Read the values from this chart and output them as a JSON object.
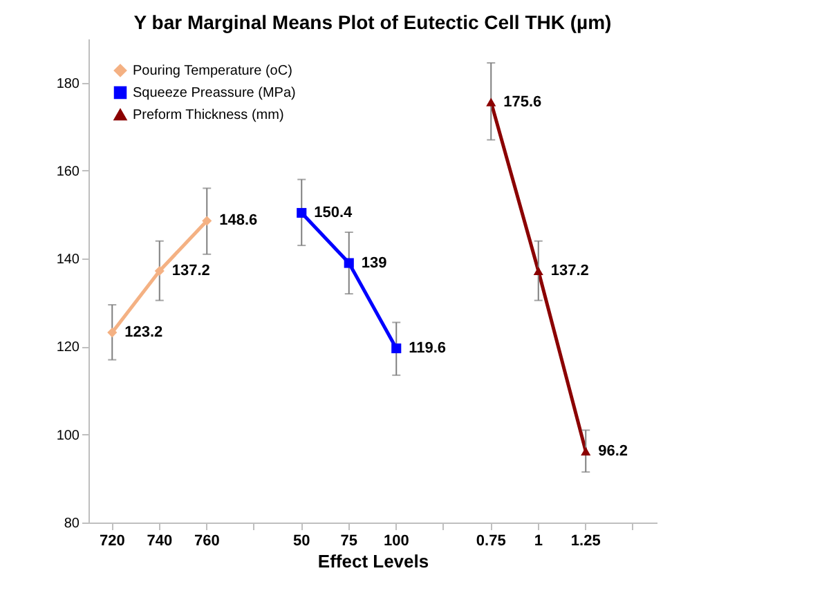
{
  "chart_data": {
    "type": "line",
    "title": "Y bar Marginal Means Plot of Eutectic Cell THK (µm)",
    "xlabel": "Effect Levels",
    "categories": [
      "720",
      "740",
      "760",
      null,
      "50",
      "75",
      "100",
      null,
      "0.75",
      "1",
      "1.25",
      null
    ],
    "series": [
      {
        "name": "Pouring Temperature (oC)",
        "color": "#f4b183",
        "marker": "diamond",
        "values": [
          123.2,
          137.2,
          148.6,
          null,
          null,
          null,
          null,
          null,
          null,
          null,
          null,
          null
        ],
        "errors": [
          [
            117,
            129.5
          ],
          [
            130.5,
            144
          ],
          [
            141,
            156
          ],
          null,
          null,
          null,
          null,
          null,
          null,
          null,
          null,
          null
        ]
      },
      {
        "name": "Squeeze Preassure (MPa)",
        "color": "#0000ff",
        "marker": "square",
        "values": [
          null,
          null,
          null,
          null,
          150.4,
          139,
          119.6,
          null,
          null,
          null,
          null,
          null
        ],
        "errors": [
          null,
          null,
          null,
          null,
          [
            143,
            158
          ],
          [
            132,
            146
          ],
          [
            113.5,
            125.5
          ],
          null,
          null,
          null,
          null,
          null
        ]
      },
      {
        "name": "Preform Thickness (mm)",
        "color": "#8b0000",
        "marker": "triangle",
        "values": [
          null,
          null,
          null,
          null,
          null,
          null,
          null,
          null,
          175.6,
          137.2,
          96.2,
          null
        ],
        "errors": [
          null,
          null,
          null,
          null,
          null,
          null,
          null,
          null,
          [
            167,
            184.5
          ],
          [
            130.5,
            144
          ],
          [
            91.5,
            101
          ],
          null
        ]
      }
    ],
    "ylim": [
      80,
      190
    ],
    "yticks": [
      80,
      100,
      120,
      140,
      160,
      180
    ],
    "data_labels": true,
    "legend": "top left",
    "grid": false
  }
}
